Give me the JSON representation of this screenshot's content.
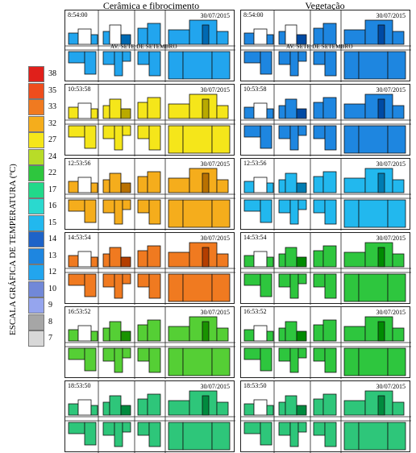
{
  "columns": [
    {
      "title": "Cerâmica e fibrocimento"
    },
    {
      "title": "Vegetação"
    }
  ],
  "date": "30/07/2015",
  "street": "AV. SETE DE SETEMBRO",
  "legend": {
    "title": "ESCALA GRÁFICA DE TEMPERATURA (ºC)",
    "items": [
      {
        "value": "38",
        "color": "#e0201b"
      },
      {
        "value": "35",
        "color": "#ee4d1d"
      },
      {
        "value": "33",
        "color": "#f07a20"
      },
      {
        "value": "32",
        "color": "#f5ad1c"
      },
      {
        "value": "27",
        "color": "#f5e61a"
      },
      {
        "value": "24",
        "color": "#b8dc28"
      },
      {
        "value": "22",
        "color": "#2ec63e"
      },
      {
        "value": "17",
        "color": "#21d98a"
      },
      {
        "value": "16",
        "color": "#2ad9cf"
      },
      {
        "value": "15",
        "color": "#22b8ee"
      },
      {
        "value": "14",
        "color": "#1e63c8"
      },
      {
        "value": "13",
        "color": "#1e86e0"
      },
      {
        "value": "12",
        "color": "#22a5ee"
      },
      {
        "value": "10",
        "color": "#7188d8"
      },
      {
        "value": "9",
        "color": "#95a5ee"
      },
      {
        "value": "8",
        "color": "#a6a6a6"
      },
      {
        "value": "7",
        "color": "#d8d8d8"
      }
    ]
  },
  "rows": [
    {
      "time": "8:54:00",
      "ceramic_color": "#22a5ee",
      "vegetation_color": "#1e86e0"
    },
    {
      "time": "10:53:58",
      "ceramic_color": "#f5e61a",
      "vegetation_color": "#1e86e0"
    },
    {
      "time": "12:53:56",
      "ceramic_color": "#f5ad1c",
      "vegetation_color": "#22b8ee"
    },
    {
      "time": "14:53:54",
      "ceramic_color": "#f07a20",
      "vegetation_color": "#2ec63e"
    },
    {
      "time": "16:53:52",
      "ceramic_color": "#55cf35",
      "vegetation_color": "#2ec63e"
    },
    {
      "time": "18:53:50",
      "ceramic_color": "#2ec67a",
      "vegetation_color": "#2ec67a"
    }
  ]
}
